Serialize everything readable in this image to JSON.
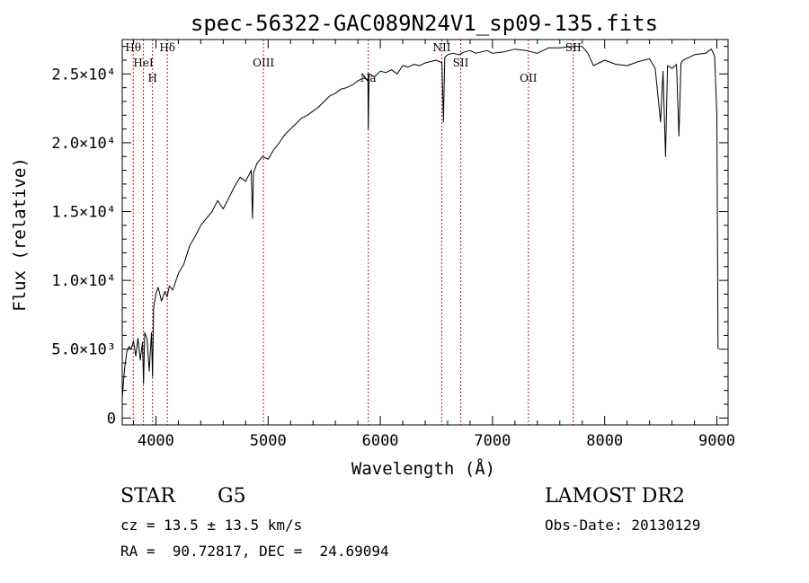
{
  "chart_data": {
    "type": "line",
    "title": "spec-56322-GAC089N24V1_sp09-135.fits",
    "xlabel": "Wavelength (Å)",
    "ylabel": "Flux (relative)",
    "xlim": [
      3700,
      9100
    ],
    "ylim": [
      -500,
      27500
    ],
    "x_ticks": [
      4000,
      5000,
      6000,
      7000,
      8000,
      9000
    ],
    "y_ticks": [
      {
        "value": 0,
        "label": "0"
      },
      {
        "value": 5000,
        "label": "5.0×10³"
      },
      {
        "value": 10000,
        "label": "1.0×10⁴"
      },
      {
        "value": 15000,
        "label": "1.5×10⁴"
      },
      {
        "value": 20000,
        "label": "2.0×10⁴"
      },
      {
        "value": 25000,
        "label": "2.5×10⁴"
      }
    ],
    "grid": false,
    "series": [
      {
        "color": "#000000",
        "x": [
          3700,
          3720,
          3740,
          3760,
          3780,
          3800,
          3820,
          3840,
          3860,
          3880,
          3890,
          3900,
          3920,
          3940,
          3960,
          3970,
          3980,
          4000,
          4020,
          4050,
          4080,
          4100,
          4120,
          4150,
          4200,
          4250,
          4300,
          4350,
          4400,
          4450,
          4500,
          4550,
          4600,
          4650,
          4700,
          4750,
          4800,
          4850,
          4861,
          4870,
          4900,
          4950,
          5000,
          5050,
          5100,
          5150,
          5200,
          5250,
          5300,
          5350,
          5400,
          5450,
          5500,
          5550,
          5600,
          5650,
          5700,
          5750,
          5800,
          5850,
          5890,
          5893,
          5900,
          5950,
          6000,
          6050,
          6100,
          6150,
          6200,
          6250,
          6300,
          6350,
          6400,
          6450,
          6500,
          6550,
          6563,
          6575,
          6600,
          6650,
          6700,
          6750,
          6800,
          6850,
          6900,
          6950,
          7000,
          7100,
          7200,
          7300,
          7400,
          7500,
          7600,
          7700,
          7800,
          7850,
          7900,
          7950,
          8000,
          8100,
          8200,
          8300,
          8400,
          8450,
          8498,
          8520,
          8542,
          8560,
          8600,
          8640,
          8662,
          8680,
          8700,
          8800,
          8900,
          8950,
          8980,
          9000,
          9010
        ],
        "y": [
          1500,
          3500,
          4800,
          5200,
          5000,
          5600,
          4500,
          5800,
          4200,
          5500,
          2500,
          6200,
          5800,
          3400,
          6200,
          3000,
          8000,
          9000,
          9500,
          8500,
          9200,
          8800,
          9600,
          9300,
          10500,
          11200,
          12500,
          13200,
          14000,
          14500,
          15000,
          15800,
          15200,
          16000,
          16800,
          17500,
          17200,
          18000,
          14500,
          17800,
          18500,
          19000,
          18800,
          19500,
          20000,
          20600,
          21000,
          21400,
          21800,
          22000,
          22300,
          22600,
          23000,
          23400,
          23600,
          23900,
          24000,
          24200,
          24500,
          24700,
          24600,
          21000,
          25000,
          24800,
          25200,
          25100,
          25300,
          25000,
          25600,
          25500,
          25700,
          25600,
          25800,
          25900,
          26000,
          25800,
          21500,
          26200,
          26400,
          26500,
          26400,
          26600,
          26700,
          26500,
          26600,
          26700,
          26500,
          26600,
          26800,
          26700,
          26500,
          26900,
          26900,
          27000,
          27000,
          26500,
          25600,
          25800,
          26000,
          25700,
          25600,
          25900,
          26100,
          25400,
          21500,
          25200,
          19000,
          25600,
          25400,
          25700,
          20500,
          25800,
          26000,
          26400,
          26500,
          26800,
          26300,
          22000,
          5000
        ]
      }
    ],
    "spectral_lines": [
      {
        "name": "Hθ",
        "wavelength": 3798
      },
      {
        "name": "HeI",
        "wavelength": 3889
      },
      {
        "name": "H",
        "wavelength": 3970
      },
      {
        "name": "Hδ",
        "wavelength": 4102
      },
      {
        "name": "OIII",
        "wavelength": 4959
      },
      {
        "name": "Na",
        "wavelength": 5893
      },
      {
        "name": "NII",
        "wavelength": 6548
      },
      {
        "name": "SII",
        "wavelength": 6717
      },
      {
        "name": "OII",
        "wavelength": 7320
      },
      {
        "name": "SII",
        "wavelength": 7720
      }
    ]
  },
  "info": {
    "object_type": "STAR",
    "subclass": "G5",
    "survey": "LAMOST DR2",
    "cz": "cz = 13.5 ± 13.5 km/s",
    "obs_date": "Obs-Date: 20130129",
    "coords": "RA =  90.72817, DEC =  24.69094"
  }
}
